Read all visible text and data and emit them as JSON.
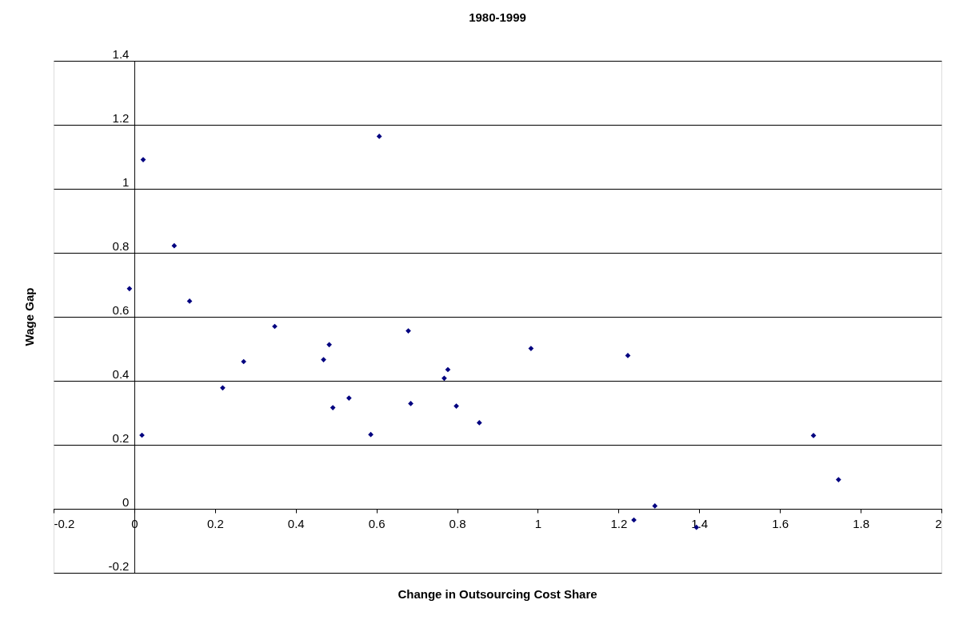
{
  "chart_data": {
    "type": "scatter",
    "title": "1980-1999",
    "xlabel": "Change in Outsourcing Cost Share",
    "ylabel": "Wage Gap",
    "x": [
      -0.012,
      0.022,
      0.019,
      0.099,
      0.137,
      0.219,
      0.271,
      0.348,
      0.469,
      0.483,
      0.492,
      0.532,
      0.586,
      0.607,
      0.679,
      0.685,
      0.768,
      0.777,
      0.798,
      0.855,
      0.983,
      1.223,
      1.238,
      1.29,
      1.393,
      1.683,
      1.745
    ],
    "series": [
      {
        "color": "#000080",
        "values": [
          0.688,
          1.091,
          0.23,
          0.822,
          0.649,
          0.378,
          0.46,
          0.57,
          0.466,
          0.513,
          0.316,
          0.346,
          0.232,
          1.164,
          0.556,
          0.329,
          0.408,
          0.435,
          0.321,
          0.269,
          0.501,
          0.479,
          -0.035,
          0.009,
          -0.058,
          0.229,
          0.091
        ]
      }
    ],
    "xlim": [
      -0.2,
      2
    ],
    "xticks": [
      -0.2,
      0,
      0.2,
      0.4,
      0.6,
      0.8,
      1,
      1.2,
      1.4,
      1.6,
      1.8,
      2
    ],
    "ylim": [
      -0.2,
      1.4
    ],
    "yticks": [
      -0.2,
      0,
      0.2,
      0.4,
      0.6,
      0.8,
      1,
      1.2,
      1.4
    ],
    "grid": "y",
    "marker": "diamond"
  }
}
